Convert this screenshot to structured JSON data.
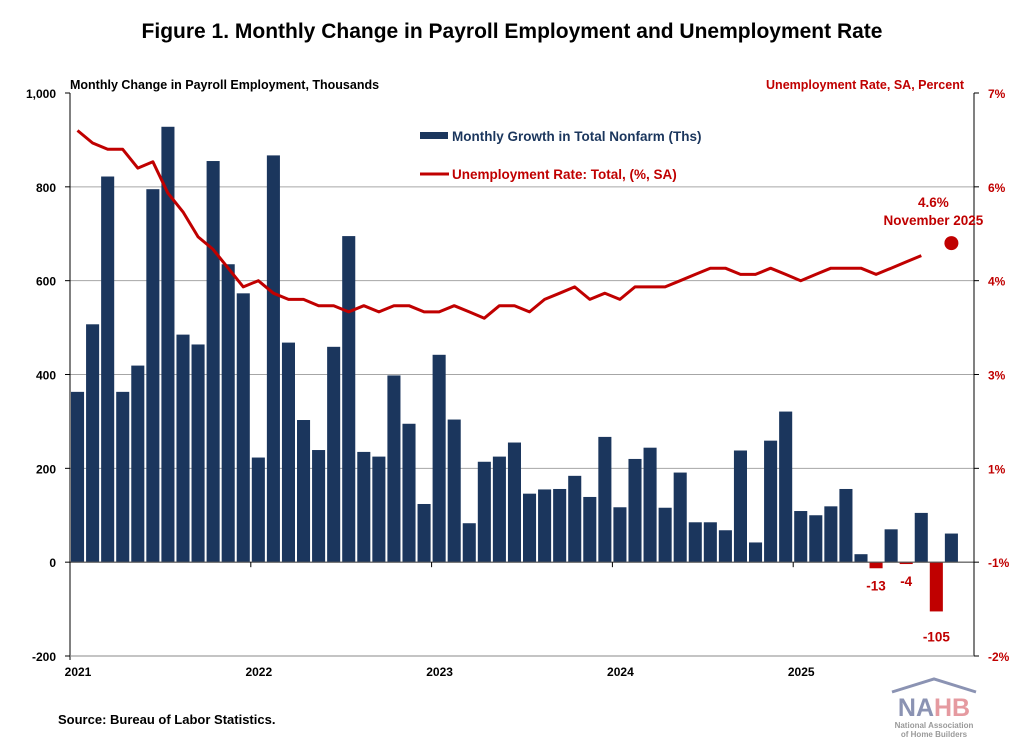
{
  "title": "Figure 1. Monthly Change in Payroll Employment and Unemployment Rate",
  "source": "Source: Bureau of Labor Statistics.",
  "logo": {
    "text": "NAHB",
    "subtitle": "National Association of Home Builders"
  },
  "colors": {
    "bars": "#1b365d",
    "negative_bars": "#c00000",
    "line": "#c00000",
    "grid": "#a6a6a6"
  },
  "chart_data": {
    "type": "bar+line",
    "ylabel_left": "Monthly Change in Payroll Employment, Thousands",
    "ylabel_right": "Unemployment Rate, SA, Percent",
    "ylim_left": [
      -200,
      1000
    ],
    "yticks_left": [
      "-200",
      "0",
      "200",
      "400",
      "600",
      "800",
      "1,000"
    ],
    "ylim_right": [
      -2,
      7
    ],
    "yticks_right": [
      "-2%",
      "-1%",
      "1%",
      "3%",
      "4%",
      "6%",
      "7%"
    ],
    "x_tick_labels": [
      "2021",
      "2022",
      "2023",
      "2024",
      "2025"
    ],
    "x_start": "2021-01",
    "x_end": "2025-12",
    "grid": true,
    "legend_position": "top-center",
    "series": [
      {
        "name": "Monthly Growth in Total Nonfarm (Ths)",
        "type": "bar",
        "axis": "left",
        "values": [
          363,
          507,
          822,
          363,
          419,
          795,
          928,
          485,
          464,
          855,
          635,
          573,
          223,
          867,
          468,
          303,
          239,
          459,
          695,
          235,
          225,
          398,
          295,
          124,
          442,
          304,
          83,
          214,
          225,
          255,
          146,
          155,
          156,
          184,
          139,
          267,
          117,
          220,
          244,
          116,
          191,
          85,
          85,
          68,
          238,
          42,
          259,
          321,
          109,
          100,
          119,
          156,
          17,
          -13,
          70,
          -4,
          105,
          -105,
          61
        ]
      },
      {
        "name": "Unemployment Rate: Total, (%, SA)",
        "type": "line",
        "axis": "right",
        "values": [
          6.4,
          6.2,
          6.1,
          6.1,
          5.8,
          5.9,
          5.4,
          5.1,
          4.7,
          4.5,
          4.2,
          3.9,
          4.0,
          3.8,
          3.7,
          3.7,
          3.6,
          3.6,
          3.5,
          3.6,
          3.5,
          3.6,
          3.6,
          3.5,
          3.5,
          3.6,
          3.5,
          3.4,
          3.6,
          3.6,
          3.5,
          3.7,
          3.8,
          3.9,
          3.7,
          3.8,
          3.7,
          3.9,
          3.9,
          3.9,
          4.0,
          4.1,
          4.2,
          4.2,
          4.1,
          4.1,
          4.2,
          4.1,
          4.0,
          4.1,
          4.2,
          4.2,
          4.2,
          4.1,
          4.2,
          4.3,
          4.4,
          null,
          4.6
        ]
      }
    ],
    "annotations": [
      {
        "text": "-13",
        "month": "2025-06"
      },
      {
        "text": "-4",
        "month": "2025-08"
      },
      {
        "text": "-105",
        "month": "2025-10"
      },
      {
        "text": "4.6%",
        "month": "2025-11"
      },
      {
        "text": "November 2025",
        "month": "2025-11"
      }
    ]
  }
}
